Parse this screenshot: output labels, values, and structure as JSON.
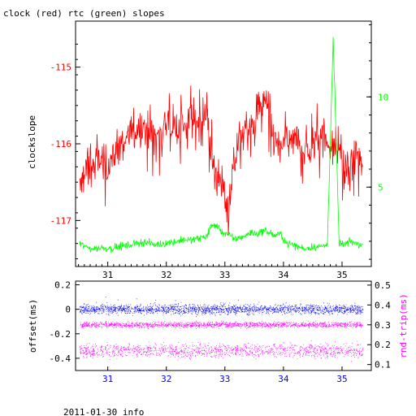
{
  "title": "clock (red) rtc (green) slopes",
  "footer": "2011-01-30 info",
  "colors": {
    "clock": "#ff0000",
    "rtc": "#00ff00",
    "offset": "#0000ff",
    "rnd_trip": "#ff00ff",
    "axis": "#000000"
  },
  "chart_data": [
    {
      "type": "line",
      "title": "clock (red) rtc (green) slopes",
      "xlim": [
        30.45,
        35.5
      ],
      "x_ticks": [
        31,
        32,
        33,
        34,
        35
      ],
      "left_axis": {
        "label": "clockslope",
        "ylim": [
          -117.6,
          -114.4
        ],
        "ticks": [
          -115,
          -116,
          -117
        ],
        "color": "#ff0000"
      },
      "right_axis": {
        "label": "",
        "ylim": [
          0.6,
          14.2
        ],
        "ticks": [
          5,
          10
        ],
        "color": "#00ff00"
      },
      "series": [
        {
          "name": "clock",
          "axis": "left",
          "color": "#ff0000",
          "x": [
            30.52,
            30.6,
            30.7,
            30.8,
            30.9,
            31.0,
            31.1,
            31.2,
            31.3,
            31.4,
            31.5,
            31.6,
            31.7,
            31.8,
            31.9,
            32.0,
            32.1,
            32.2,
            32.3,
            32.4,
            32.5,
            32.6,
            32.7,
            32.75,
            32.85,
            32.95,
            33.05,
            33.15,
            33.25,
            33.35,
            33.45,
            33.55,
            33.65,
            33.75,
            33.85,
            33.95,
            34.05,
            34.15,
            34.25,
            34.35,
            34.45,
            34.55,
            34.65,
            34.75,
            34.85,
            34.95,
            35.05,
            35.15,
            35.25,
            35.35
          ],
          "y": [
            -116.6,
            -116.4,
            -116.3,
            -116.25,
            -116.2,
            -116.3,
            -116.15,
            -116.0,
            -115.95,
            -115.85,
            -115.8,
            -115.75,
            -115.85,
            -115.9,
            -115.85,
            -115.7,
            -115.75,
            -115.8,
            -115.75,
            -115.7,
            -115.75,
            -115.7,
            -115.65,
            -116.1,
            -116.4,
            -116.5,
            -116.9,
            -116.3,
            -115.9,
            -115.85,
            -115.8,
            -115.6,
            -115.4,
            -115.6,
            -115.95,
            -116.1,
            -115.9,
            -116.0,
            -115.95,
            -116.05,
            -116.1,
            -115.95,
            -115.85,
            -116.0,
            -116.1,
            -116.0,
            -116.4,
            -116.3,
            -116.1,
            -116.3
          ]
        },
        {
          "name": "rtc",
          "axis": "right",
          "color": "#00ff00",
          "x": [
            30.52,
            30.6,
            30.7,
            30.8,
            30.9,
            31.0,
            31.1,
            31.2,
            31.3,
            31.4,
            31.5,
            31.6,
            31.7,
            31.8,
            31.9,
            32.0,
            32.1,
            32.2,
            32.3,
            32.4,
            32.5,
            32.6,
            32.7,
            32.75,
            32.85,
            32.95,
            33.05,
            33.15,
            33.25,
            33.35,
            33.45,
            33.55,
            33.65,
            33.75,
            33.85,
            33.95,
            34.05,
            34.15,
            34.25,
            34.35,
            34.45,
            34.55,
            34.65,
            34.75,
            34.85,
            34.95,
            35.05,
            35.15,
            35.25,
            35.35
          ],
          "y": [
            1.9,
            1.7,
            1.6,
            1.6,
            1.65,
            1.6,
            1.65,
            1.7,
            1.75,
            1.8,
            1.9,
            1.95,
            1.9,
            1.8,
            1.85,
            1.9,
            1.95,
            2.0,
            2.1,
            2.05,
            2.1,
            2.2,
            2.3,
            2.8,
            2.9,
            2.5,
            2.4,
            2.1,
            2.2,
            2.3,
            2.5,
            2.4,
            2.6,
            2.5,
            2.3,
            2.4,
            1.9,
            1.8,
            1.7,
            1.6,
            1.65,
            1.7,
            1.7,
            1.8,
            13.2,
            1.9,
            1.8,
            2.0,
            1.85,
            1.8
          ]
        }
      ]
    },
    {
      "type": "scatter",
      "xlim": [
        30.45,
        35.5
      ],
      "x_ticks": [
        31,
        32,
        33,
        34,
        35
      ],
      "left_axis": {
        "label": "offset(ms)",
        "ylim": [
          -0.5,
          0.23
        ],
        "ticks": [
          0.2,
          0,
          -0.2,
          -0.4
        ],
        "color": "#0000ff"
      },
      "right_axis": {
        "label": "rnd-trip(ms)",
        "ylim": [
          0.07,
          0.52
        ],
        "ticks": [
          0.5,
          0.4,
          0.3,
          0.2,
          0.1
        ],
        "color": "#ff00ff"
      },
      "series": [
        {
          "name": "offset",
          "axis": "left",
          "color": "#0000ff",
          "center": 0.0,
          "spread": 0.06
        },
        {
          "name": "rnd-trip",
          "axis": "right",
          "color": "#ff00ff",
          "center_high": 0.3,
          "center_low": 0.17
        }
      ]
    }
  ]
}
